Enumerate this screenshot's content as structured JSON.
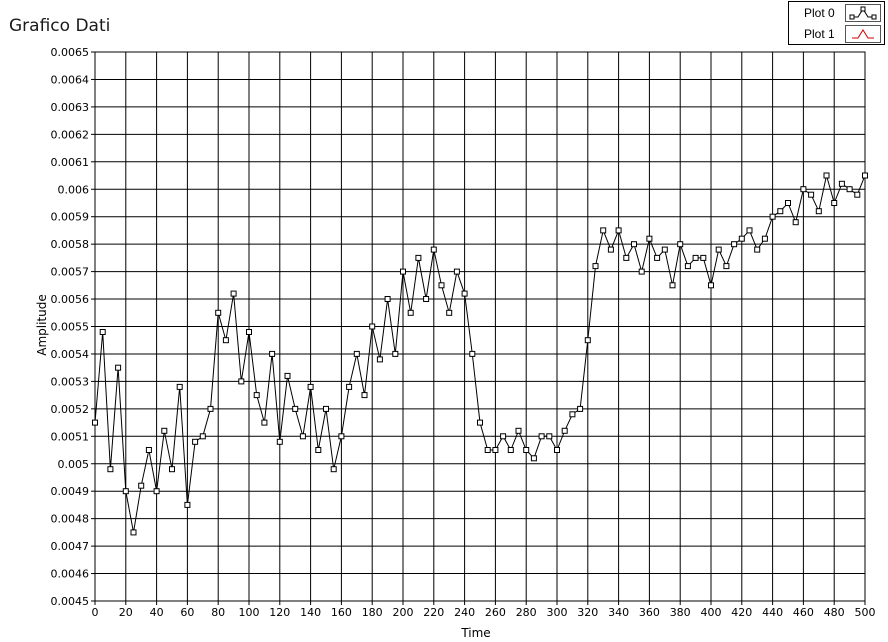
{
  "chart_data": {
    "type": "line",
    "title": "Grafico Dati",
    "xlabel": "Time",
    "ylabel": "Amplitude",
    "xlim": [
      0,
      500
    ],
    "ylim": [
      0.0045,
      0.0065
    ],
    "x_ticks": [
      "0",
      "20",
      "40",
      "60",
      "80",
      "100",
      "120",
      "140",
      "160",
      "180",
      "200",
      "220",
      "240",
      "260",
      "280",
      "300",
      "320",
      "340",
      "360",
      "380",
      "400",
      "420",
      "440",
      "460",
      "480",
      "500"
    ],
    "y_ticks": [
      "0.0045",
      "0.0046",
      "0.0047",
      "0.0048",
      "0.0049",
      "0.005",
      "0.0051",
      "0.0052",
      "0.0053",
      "0.0054",
      "0.0055",
      "0.0056",
      "0.0057",
      "0.0058",
      "0.0059",
      "0.006",
      "0.0061",
      "0.0062",
      "0.0063",
      "0.0064",
      "0.0065"
    ],
    "grid": true,
    "legend_position": "top-right",
    "series": [
      {
        "name": "Plot 0",
        "color": "#000000",
        "marker": "square",
        "x": [
          0,
          5,
          10,
          15,
          20,
          25,
          30,
          35,
          40,
          45,
          50,
          55,
          60,
          65,
          70,
          75,
          80,
          85,
          90,
          95,
          100,
          105,
          110,
          115,
          120,
          125,
          130,
          135,
          140,
          145,
          150,
          155,
          160,
          165,
          170,
          175,
          180,
          185,
          190,
          195,
          200,
          205,
          210,
          215,
          220,
          225,
          230,
          235,
          240,
          245,
          250,
          255,
          260,
          265,
          270,
          275,
          280,
          285,
          290,
          295,
          300,
          305,
          310,
          315,
          320,
          325,
          330,
          335,
          340,
          345,
          350,
          355,
          360,
          365,
          370,
          375,
          380,
          385,
          390,
          395,
          400,
          405,
          410,
          415,
          420,
          425,
          430,
          435,
          440,
          445,
          450,
          455,
          460,
          465,
          470,
          475,
          480,
          485,
          490,
          495,
          500
        ],
        "y": [
          0.00515,
          0.00548,
          0.00498,
          0.00535,
          0.0049,
          0.00475,
          0.00492,
          0.00505,
          0.0049,
          0.00512,
          0.00498,
          0.00528,
          0.00485,
          0.00508,
          0.0051,
          0.0052,
          0.00555,
          0.00545,
          0.00562,
          0.0053,
          0.00548,
          0.00525,
          0.00515,
          0.0054,
          0.00508,
          0.00532,
          0.0052,
          0.0051,
          0.00528,
          0.00505,
          0.0052,
          0.00498,
          0.0051,
          0.00528,
          0.0054,
          0.00525,
          0.0055,
          0.00538,
          0.0056,
          0.0054,
          0.0057,
          0.00555,
          0.00575,
          0.0056,
          0.00578,
          0.00565,
          0.00555,
          0.0057,
          0.00562,
          0.0054,
          0.00515,
          0.00505,
          0.00505,
          0.0051,
          0.00505,
          0.00512,
          0.00505,
          0.00502,
          0.0051,
          0.0051,
          0.00505,
          0.00512,
          0.00518,
          0.0052,
          0.00545,
          0.00572,
          0.00585,
          0.00578,
          0.00585,
          0.00575,
          0.0058,
          0.0057,
          0.00582,
          0.00575,
          0.00578,
          0.00565,
          0.0058,
          0.00572,
          0.00575,
          0.00575,
          0.00565,
          0.00578,
          0.00572,
          0.0058,
          0.00582,
          0.00585,
          0.00578,
          0.00582,
          0.0059,
          0.00592,
          0.00595,
          0.00588,
          0.006,
          0.00598,
          0.00592,
          0.00605,
          0.00595,
          0.00602,
          0.006,
          0.00598,
          0.00605
        ]
      },
      {
        "name": "Plot 1",
        "color": "#d00000",
        "marker": "none",
        "x": [],
        "y": []
      }
    ]
  }
}
